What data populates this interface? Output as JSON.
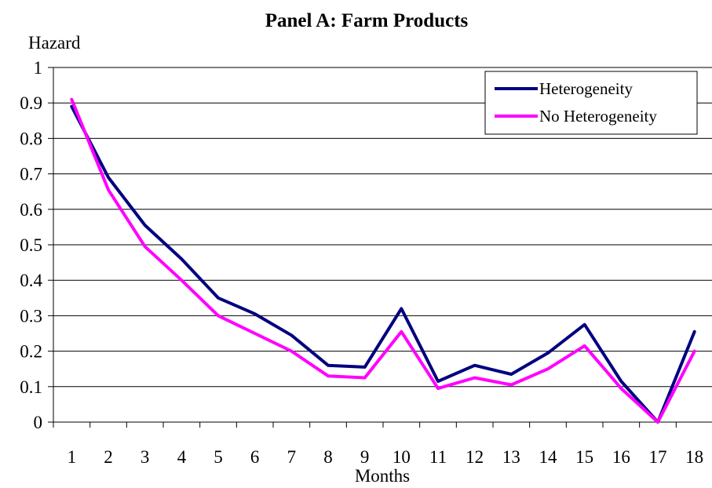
{
  "chart_data": {
    "type": "line",
    "title": "Panel A: Farm Products",
    "ylabel": "Hazard",
    "xlabel": "Months",
    "ylim": [
      0,
      1
    ],
    "y_ticks": [
      "0",
      "0.1",
      "0.2",
      "0.3",
      "0.4",
      "0.5",
      "0.6",
      "0.7",
      "0.8",
      "0.9",
      "1"
    ],
    "categories": [
      "1",
      "2",
      "3",
      "4",
      "5",
      "6",
      "7",
      "8",
      "9",
      "10",
      "11",
      "12",
      "13",
      "14",
      "15",
      "16",
      "17",
      "18"
    ],
    "grid": "horizontal",
    "legend_position": "top-right",
    "series": [
      {
        "name": "Heterogeneity",
        "color": "#000080",
        "values": [
          0.89,
          0.69,
          0.555,
          0.46,
          0.35,
          0.305,
          0.245,
          0.16,
          0.155,
          0.32,
          0.115,
          0.16,
          0.135,
          0.195,
          0.275,
          0.115,
          0.0,
          0.255
        ]
      },
      {
        "name": "No Heterogeneity",
        "color": "#ff00ff",
        "values": [
          0.91,
          0.655,
          0.495,
          0.4,
          0.3,
          0.25,
          0.2,
          0.13,
          0.125,
          0.255,
          0.095,
          0.125,
          0.105,
          0.15,
          0.215,
          0.095,
          0.0,
          0.2
        ]
      }
    ]
  }
}
